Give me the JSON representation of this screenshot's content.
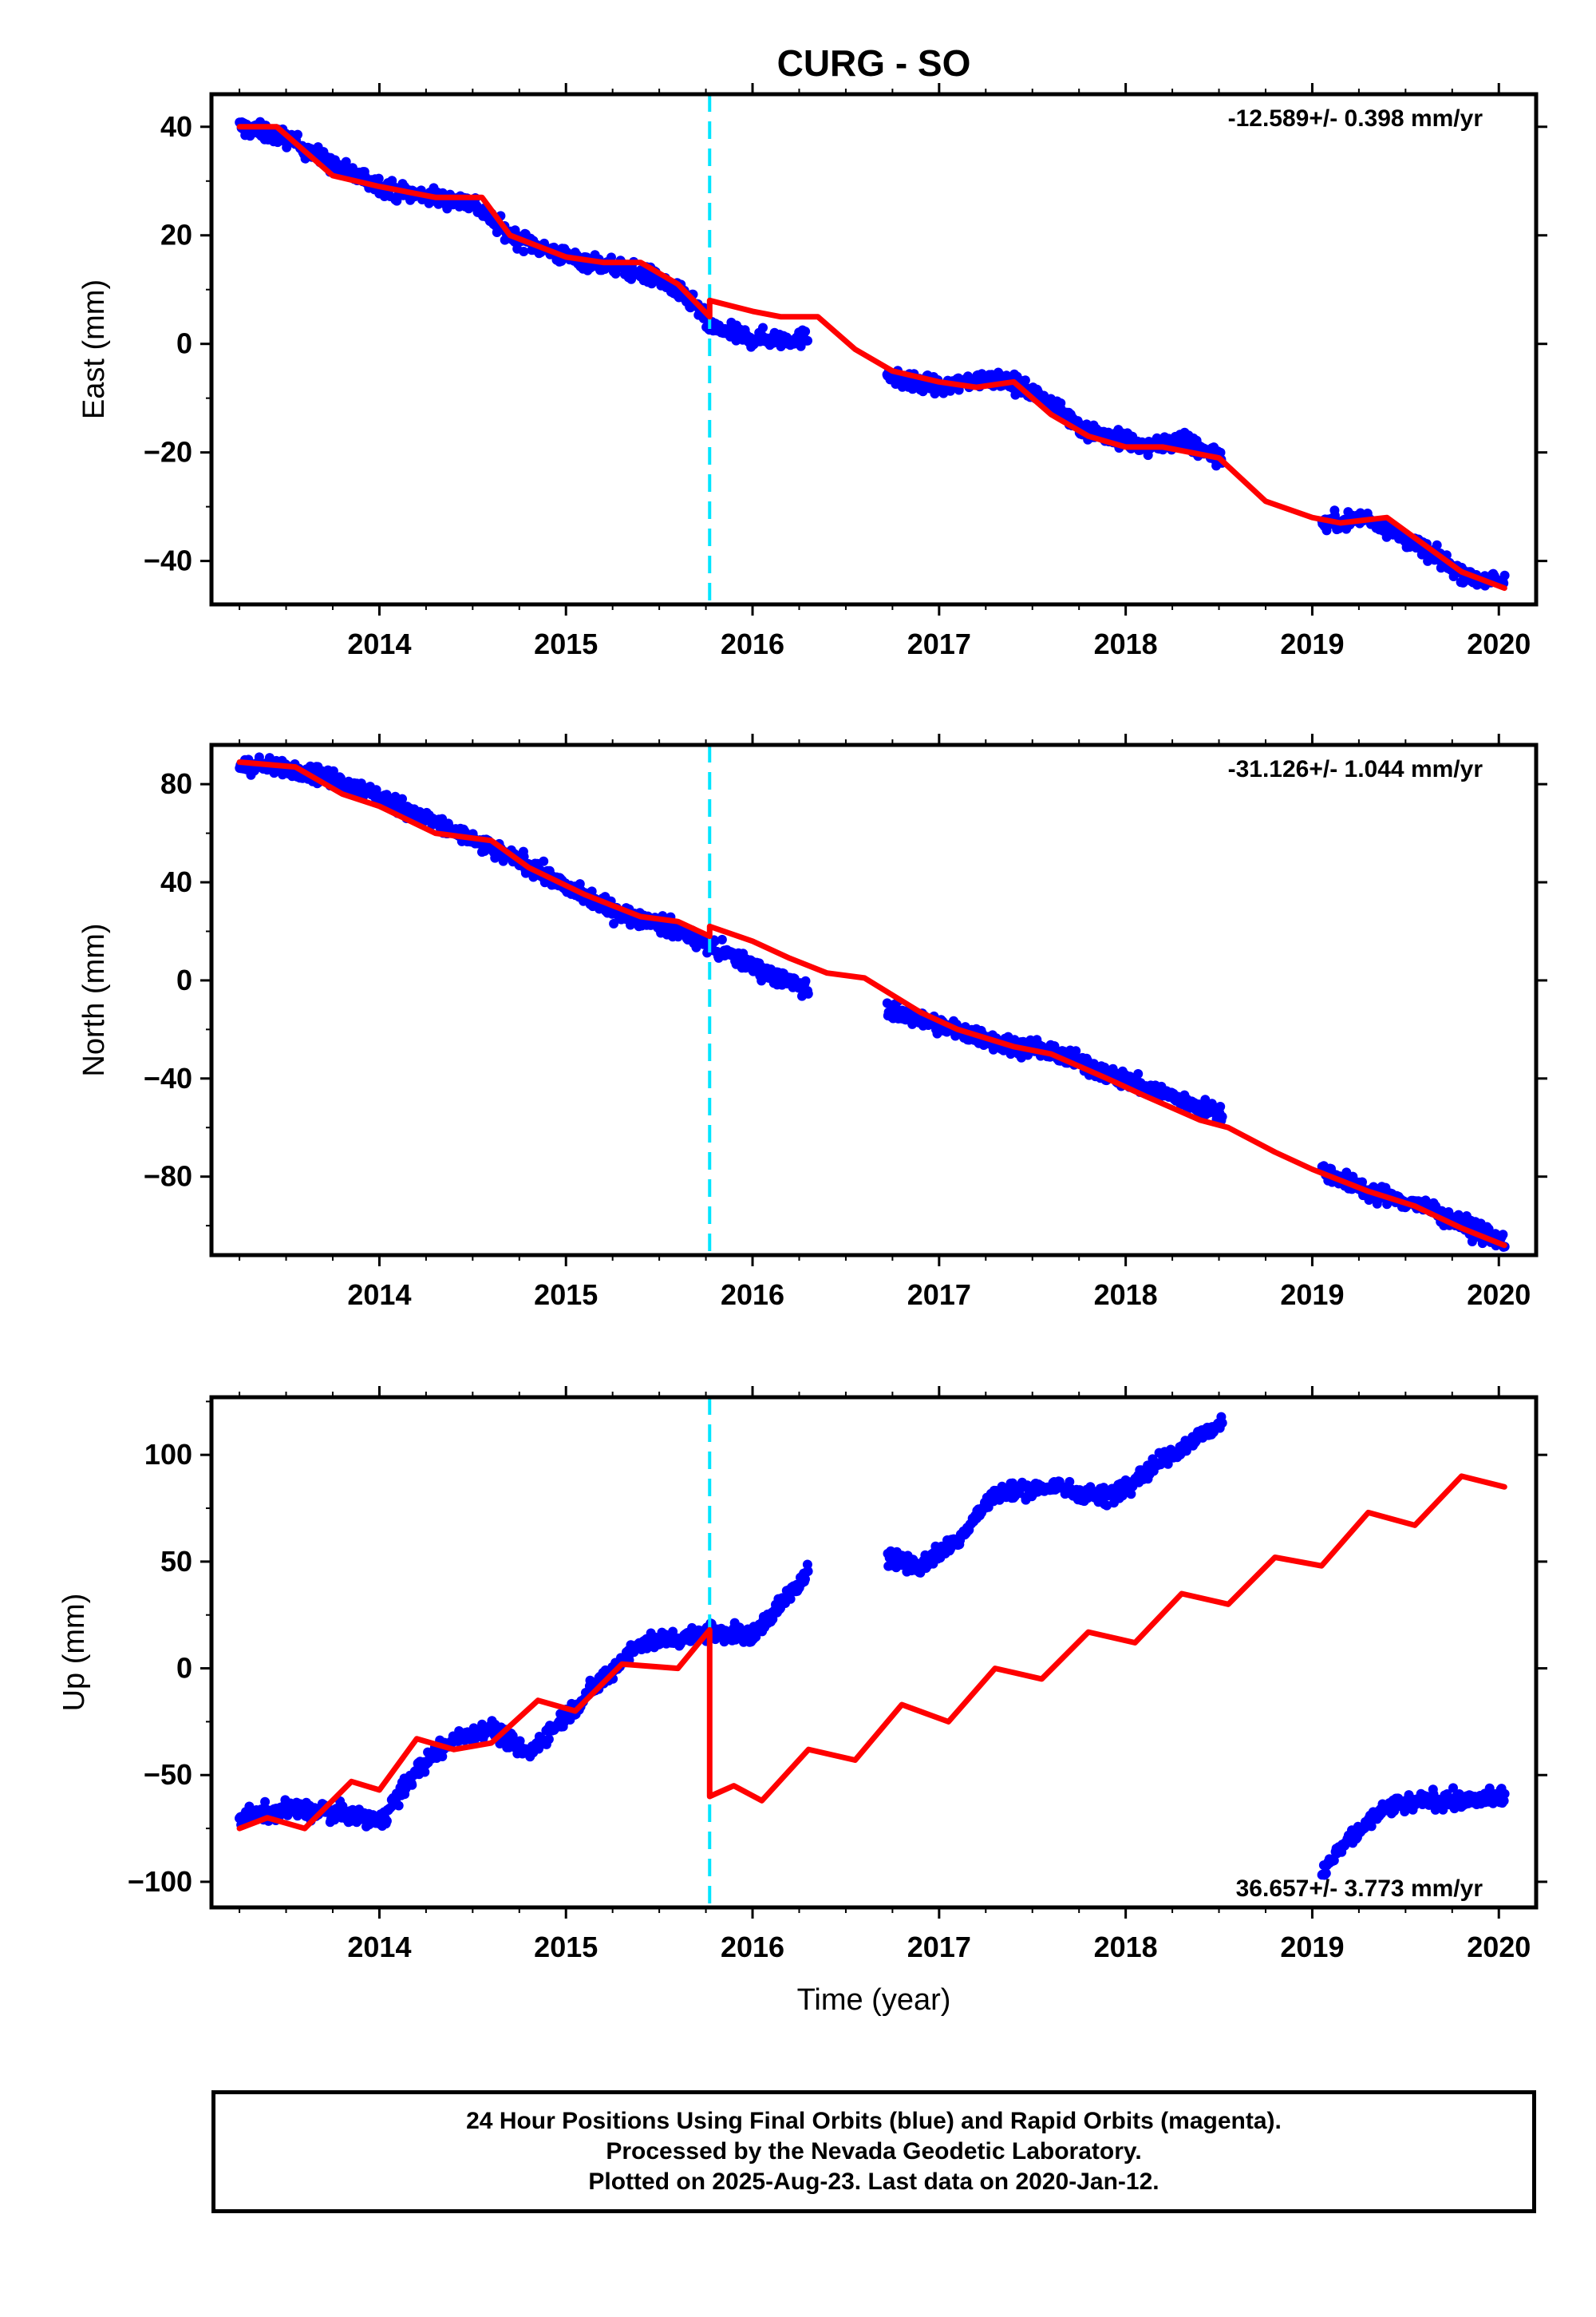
{
  "title": "CURG - SO",
  "xlabel": "Time (year)",
  "footer": {
    "line1": "24 Hour Positions Using Final Orbits (blue) and Rapid Orbits (magenta).",
    "line2": "Processed by the Nevada Geodetic Laboratory.",
    "line3": "Plotted on 2025-Aug-23. Last data on 2020-Jan-12."
  },
  "colors": {
    "data": "#0000ff",
    "model": "#ff0000",
    "offset": "#00e5ff",
    "frame": "#000000"
  },
  "chart_data": [
    {
      "type": "scatter",
      "ylabel": "East (mm)",
      "rate": "-12.589+/- 0.398 mm/yr",
      "xlim": [
        2013.1,
        2020.2
      ],
      "ylim": [
        -48,
        46
      ],
      "yticks": [
        40,
        20,
        0,
        -20,
        -40
      ],
      "ytick_labels": [
        "40",
        "20",
        "0",
        "−20",
        "−40"
      ],
      "xticks": [
        2014,
        2015,
        2016,
        2017,
        2018,
        2019,
        2020
      ],
      "xtick_labels": [
        "2014",
        "2015",
        "2016",
        "2017",
        "2018",
        "2019",
        "2020"
      ],
      "offset_x": 2015.77,
      "gaps": [
        [
          2016.3,
          2016.72
        ],
        [
          2018.52,
          2019.05
        ]
      ],
      "series": [
        {
          "role": "data",
          "x": [
            2013.25,
            2013.5,
            2013.8,
            2014.1,
            2014.3,
            2014.5,
            2014.7,
            2015.0,
            2015.3,
            2015.5,
            2015.7,
            2015.77,
            2016.0,
            2016.3,
            2016.72,
            2017.0,
            2017.3,
            2017.5,
            2017.8,
            2018.1,
            2018.3,
            2018.52,
            2019.05,
            2019.3,
            2019.6,
            2019.85,
            2020.03
          ],
          "y": [
            40,
            38,
            32,
            28,
            27,
            26,
            20,
            16,
            14,
            12,
            7,
            3,
            1,
            1,
            -6,
            -8,
            -6,
            -9,
            -16,
            -19,
            -18,
            -21,
            -33,
            -32,
            -38,
            -43,
            -44
          ]
        },
        {
          "role": "model",
          "x": [
            2013.25,
            2013.45,
            2013.75,
            2014.0,
            2014.3,
            2014.55,
            2014.7,
            2015.0,
            2015.2,
            2015.4,
            2015.6,
            2015.77,
            2015.77,
            2016.0,
            2016.15,
            2016.35,
            2016.55,
            2016.75,
            2017.0,
            2017.2,
            2017.4,
            2017.6,
            2017.8,
            2018.0,
            2018.2,
            2018.5,
            2018.75,
            2019.0,
            2019.15,
            2019.4,
            2019.6,
            2019.8,
            2020.03
          ],
          "y": [
            40,
            40,
            31,
            29,
            27,
            27,
            20,
            16,
            15,
            15,
            11,
            5,
            8,
            6,
            5,
            5,
            -1,
            -5,
            -7,
            -8,
            -7,
            -13,
            -17,
            -19,
            -19,
            -21,
            -29,
            -32,
            -33,
            -32,
            -37,
            -42,
            -45
          ]
        }
      ]
    },
    {
      "type": "scatter",
      "ylabel": "North (mm)",
      "rate": "-31.126+/- 1.044 mm/yr",
      "xlim": [
        2013.1,
        2020.2
      ],
      "ylim": [
        -112,
        96
      ],
      "yticks": [
        80,
        40,
        0,
        -40,
        -80
      ],
      "ytick_labels": [
        "80",
        "40",
        "0",
        "−40",
        "−80"
      ],
      "xticks": [
        2014,
        2015,
        2016,
        2017,
        2018,
        2019,
        2020
      ],
      "xtick_labels": [
        "2014",
        "2015",
        "2016",
        "2017",
        "2018",
        "2019",
        "2020"
      ],
      "offset_x": 2015.77,
      "gaps": [
        [
          2016.3,
          2016.72
        ],
        [
          2018.52,
          2019.05
        ]
      ],
      "series": [
        {
          "role": "data",
          "x": [
            2013.25,
            2013.6,
            2013.9,
            2014.2,
            2014.5,
            2014.8,
            2015.0,
            2015.3,
            2015.6,
            2015.77,
            2016.0,
            2016.3,
            2016.72,
            2017.0,
            2017.3,
            2017.6,
            2017.9,
            2018.2,
            2018.52,
            2019.05,
            2019.3,
            2019.6,
            2019.85,
            2020.03
          ],
          "y": [
            88,
            86,
            78,
            68,
            57,
            47,
            38,
            27,
            21,
            14,
            6,
            -4,
            -12,
            -18,
            -25,
            -29,
            -38,
            -46,
            -55,
            -77,
            -86,
            -92,
            -101,
            -107
          ]
        },
        {
          "role": "model",
          "x": [
            2013.25,
            2013.55,
            2013.8,
            2014.0,
            2014.3,
            2014.6,
            2014.8,
            2015.1,
            2015.4,
            2015.6,
            2015.77,
            2015.77,
            2016.0,
            2016.2,
            2016.4,
            2016.6,
            2016.9,
            2017.1,
            2017.4,
            2017.6,
            2017.9,
            2018.1,
            2018.4,
            2018.55,
            2018.8,
            2019.0,
            2019.3,
            2019.55,
            2019.8,
            2020.03
          ],
          "y": [
            89,
            87,
            76,
            71,
            60,
            57,
            46,
            35,
            26,
            24,
            18,
            22,
            16,
            9,
            3,
            1,
            -13,
            -20,
            -27,
            -30,
            -40,
            -47,
            -57,
            -60,
            -70,
            -77,
            -86,
            -92,
            -101,
            -108
          ]
        }
      ]
    },
    {
      "type": "scatter",
      "ylabel": "Up (mm)",
      "rate": "36.657+/- 3.773 mm/yr",
      "xlim": [
        2013.1,
        2020.2
      ],
      "ylim": [
        -112,
        127
      ],
      "yticks": [
        100,
        50,
        0,
        -50,
        -100
      ],
      "ytick_labels": [
        "100",
        "50",
        "0",
        "−50",
        "−100"
      ],
      "xticks": [
        2014,
        2015,
        2016,
        2017,
        2018,
        2019,
        2020
      ],
      "xtick_labels": [
        "2014",
        "2015",
        "2016",
        "2017",
        "2018",
        "2019",
        "2020"
      ],
      "offset_x": 2015.77,
      "gaps": [
        [
          2016.3,
          2016.72
        ],
        [
          2018.52,
          2019.05
        ]
      ],
      "series": [
        {
          "role": "data",
          "x": [
            2013.25,
            2013.5,
            2013.8,
            2014.0,
            2014.2,
            2014.4,
            2014.6,
            2014.8,
            2015.0,
            2015.2,
            2015.4,
            2015.6,
            2015.77,
            2016.0,
            2016.3,
            2016.72,
            2016.9,
            2017.1,
            2017.3,
            2017.6,
            2017.9,
            2018.2,
            2018.52,
            2019.05,
            2019.2,
            2019.4,
            2019.6,
            2019.85,
            2020.03
          ],
          "y": [
            -70,
            -66,
            -68,
            -72,
            -48,
            -33,
            -28,
            -40,
            -22,
            -5,
            12,
            14,
            18,
            15,
            45,
            52,
            48,
            60,
            82,
            85,
            80,
            98,
            115,
            -95,
            -80,
            -65,
            -62,
            -62,
            -60
          ]
        },
        {
          "role": "model",
          "x": [
            2013.25,
            2013.4,
            2013.6,
            2013.85,
            2014.0,
            2014.2,
            2014.4,
            2014.6,
            2014.85,
            2015.05,
            2015.3,
            2015.6,
            2015.77,
            2015.77,
            2015.9,
            2016.05,
            2016.3,
            2016.55,
            2016.8,
            2017.05,
            2017.3,
            2017.55,
            2017.8,
            2018.05,
            2018.3,
            2018.55,
            2018.8,
            2019.05,
            2019.3,
            2019.55,
            2019.8,
            2020.03
          ],
          "y": [
            -75,
            -70,
            -75,
            -53,
            -57,
            -33,
            -38,
            -35,
            -15,
            -20,
            2,
            0,
            18,
            -60,
            -55,
            -62,
            -38,
            -43,
            -17,
            -25,
            0,
            -5,
            17,
            12,
            35,
            30,
            52,
            48,
            73,
            67,
            90,
            85
          ]
        }
      ]
    }
  ]
}
